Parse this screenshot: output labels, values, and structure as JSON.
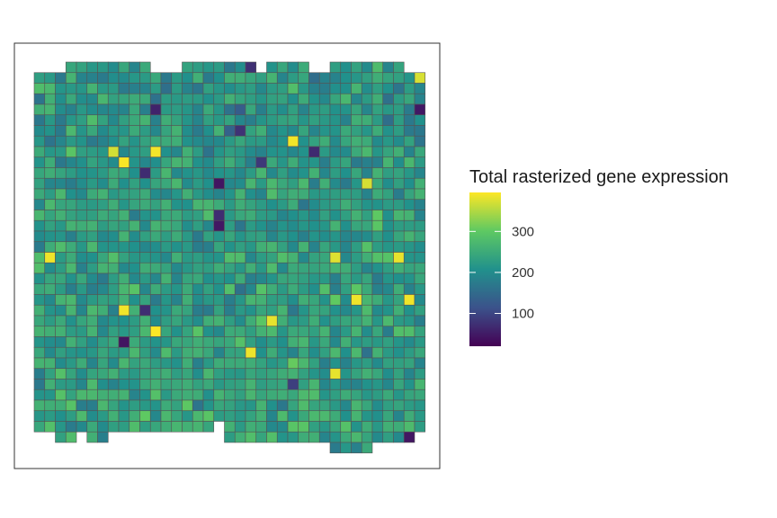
{
  "chart_data": {
    "type": "heatmap",
    "title": "",
    "xlabel": "",
    "ylabel": "",
    "grid": false,
    "axes_visible": false,
    "panel_border": true,
    "legend": {
      "title": "Total rasterized gene expression",
      "placement": "right",
      "ticks": [
        "100",
        "200",
        "300"
      ],
      "range": [
        20,
        395
      ],
      "palette": "viridis",
      "colors": [
        "#440154",
        "#3b528b",
        "#21918c",
        "#5ec962",
        "#fde725"
      ]
    },
    "n_cols": 37,
    "n_rows": 37,
    "cell_border_color": "#555555",
    "rows": [
      "...44444444...4444444.4444..4444444..",
      "5555555555555555555555555555555555555",
      "4444444444444444444444444444444444444",
      "5555555555555555555555555555555555555",
      "6666666666666666666666666666666666666",
      "7777777777777777777777777777777777777",
      "9999999999999999999999999999999999999",
      "2222222222222222222222222222222222222",
      "1111111111111111111111111111111111111",
      "0000000000000000000000000000000000000",
      "9999999999999999999999999999999999999",
      "8888888888888888888888888888888888888",
      "7777777777777777777777777777777777777",
      "6666666666666666666666666666666666666",
      "5555555555555555555555555555555555555",
      "4444444444444444444444444444444444444",
      "3333333333333333333333333333333333333",
      "2222222222222222222222222222222222222",
      "1111111111111111111111111111111111111",
      "0000000000000000000000000000000000000",
      "9999999999999999999999999999999999999",
      "8888888888888888888888888888888888888",
      "7777777777777777777777777777777777777",
      "6666666666666666666666666666666666666",
      "5555555555555555555555555555555555555",
      "4444444444444444444444444444444444444",
      "3333333333333333333333333333333333333",
      "2222222222222222222222222222222222222",
      "1111111111111111111111111111111111111",
      "0000000000000000000000000000000000000",
      "9999999999999999999999999999999999999",
      "8888888888888888888888888888888888888",
      "7777777777777777777777777777777777777",
      "6666666666666666666666666666666666666",
      "55555555555555555.5555555555555555555",
      "..55.55...........555555555555555555.",
      "............................5555....."
    ]
  }
}
